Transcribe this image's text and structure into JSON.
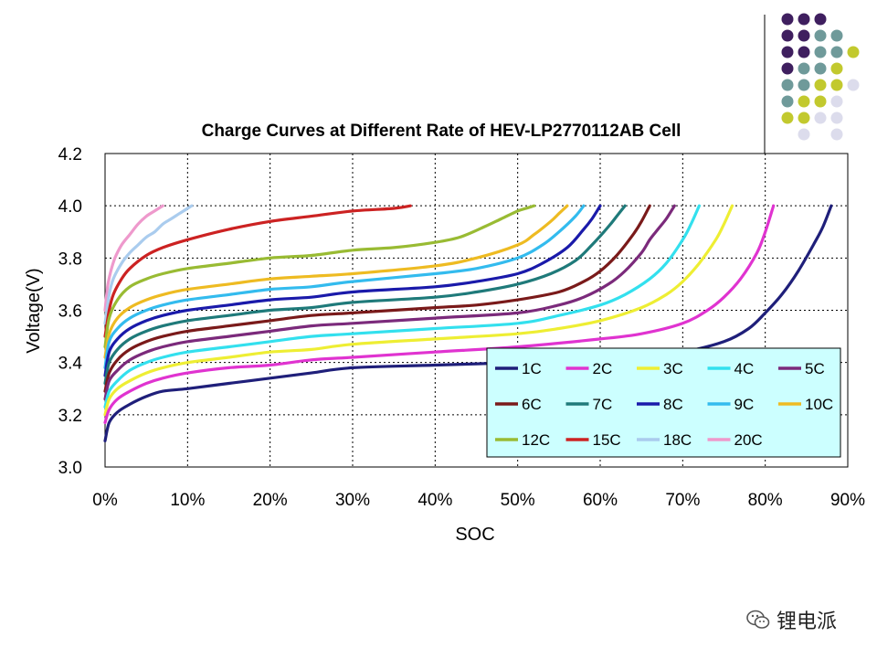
{
  "chart_data": {
    "type": "line",
    "title": "Charge Curves at Different Rate of HEV-LP2770112AB Cell",
    "xlabel": "SOC",
    "ylabel": "Voltage(V)",
    "xlim": [
      0,
      90
    ],
    "ylim": [
      3.0,
      4.2
    ],
    "x_ticks": [
      "0%",
      "10%",
      "20%",
      "30%",
      "40%",
      "50%",
      "60%",
      "70%",
      "80%",
      "90%"
    ],
    "y_ticks": [
      "3.0",
      "3.2",
      "3.4",
      "3.6",
      "3.8",
      "4.0",
      "4.2"
    ],
    "grid": "dotted",
    "legend_position": "bottom-right",
    "legend_bg": "#ccffff",
    "series": [
      {
        "name": "1C",
        "color": "#1f1f7a",
        "x": [
          0,
          0.5,
          1.5,
          3,
          5,
          7,
          10,
          15,
          20,
          25,
          30,
          40,
          50,
          60,
          65,
          70,
          75,
          78,
          80,
          82,
          84,
          86,
          87,
          88
        ],
        "y": [
          3.1,
          3.17,
          3.21,
          3.24,
          3.27,
          3.29,
          3.3,
          3.32,
          3.34,
          3.36,
          3.38,
          3.39,
          3.4,
          3.41,
          3.42,
          3.44,
          3.48,
          3.53,
          3.59,
          3.66,
          3.75,
          3.86,
          3.92,
          4.0
        ]
      },
      {
        "name": "2C",
        "color": "#e033d0",
        "x": [
          0,
          0.5,
          1.5,
          3,
          5,
          7,
          10,
          15,
          20,
          25,
          30,
          40,
          50,
          60,
          65,
          70,
          73,
          75,
          77,
          79,
          80,
          81
        ],
        "y": [
          3.17,
          3.22,
          3.26,
          3.29,
          3.32,
          3.34,
          3.36,
          3.38,
          3.39,
          3.41,
          3.42,
          3.44,
          3.46,
          3.49,
          3.51,
          3.55,
          3.6,
          3.65,
          3.72,
          3.82,
          3.9,
          4.0
        ]
      },
      {
        "name": "3C",
        "color": "#eeee33",
        "x": [
          0,
          0.5,
          1.5,
          3,
          5,
          7,
          10,
          15,
          20,
          25,
          30,
          40,
          50,
          55,
          60,
          65,
          68,
          70,
          72,
          74,
          75,
          76
        ],
        "y": [
          3.2,
          3.26,
          3.3,
          3.33,
          3.36,
          3.38,
          3.4,
          3.42,
          3.44,
          3.45,
          3.47,
          3.49,
          3.51,
          3.53,
          3.56,
          3.61,
          3.66,
          3.71,
          3.78,
          3.87,
          3.93,
          4.0
        ]
      },
      {
        "name": "4C",
        "color": "#33e0ee",
        "x": [
          0,
          0.5,
          1.5,
          3,
          5,
          7,
          10,
          15,
          20,
          25,
          30,
          40,
          50,
          55,
          60,
          63,
          66,
          68,
          70,
          71,
          72
        ],
        "y": [
          3.23,
          3.29,
          3.33,
          3.37,
          3.4,
          3.42,
          3.44,
          3.46,
          3.48,
          3.5,
          3.51,
          3.53,
          3.55,
          3.58,
          3.62,
          3.66,
          3.72,
          3.78,
          3.87,
          3.93,
          4.0
        ]
      },
      {
        "name": "5C",
        "color": "#7b2a7b",
        "x": [
          0,
          0.5,
          1.5,
          3,
          5,
          7,
          10,
          15,
          20,
          25,
          30,
          40,
          50,
          55,
          58,
          61,
          63,
          65,
          66,
          67,
          68,
          69
        ],
        "y": [
          3.26,
          3.33,
          3.37,
          3.41,
          3.44,
          3.46,
          3.48,
          3.5,
          3.52,
          3.54,
          3.55,
          3.57,
          3.59,
          3.62,
          3.65,
          3.7,
          3.75,
          3.82,
          3.87,
          3.91,
          3.95,
          4.0
        ]
      },
      {
        "name": "6C",
        "color": "#7a1a1a",
        "x": [
          0,
          0.5,
          1.5,
          3,
          5,
          7,
          10,
          15,
          20,
          25,
          30,
          40,
          45,
          50,
          55,
          58,
          60,
          62,
          64,
          65,
          66
        ],
        "y": [
          3.29,
          3.36,
          3.41,
          3.45,
          3.48,
          3.5,
          3.52,
          3.54,
          3.56,
          3.58,
          3.59,
          3.61,
          3.62,
          3.64,
          3.67,
          3.71,
          3.75,
          3.81,
          3.89,
          3.94,
          4.0
        ]
      },
      {
        "name": "7C",
        "color": "#1f7a7a",
        "x": [
          0,
          0.5,
          1.5,
          3,
          5,
          7,
          10,
          15,
          20,
          25,
          30,
          40,
          45,
          50,
          54,
          57,
          59,
          61,
          62,
          63
        ],
        "y": [
          3.32,
          3.4,
          3.45,
          3.49,
          3.52,
          3.54,
          3.56,
          3.58,
          3.6,
          3.61,
          3.63,
          3.65,
          3.67,
          3.7,
          3.74,
          3.79,
          3.85,
          3.92,
          3.96,
          4.0
        ]
      },
      {
        "name": "8C",
        "color": "#1a1aaa",
        "x": [
          0,
          0.5,
          1.5,
          3,
          5,
          7,
          10,
          15,
          20,
          25,
          30,
          40,
          45,
          50,
          53,
          56,
          58,
          59,
          60
        ],
        "y": [
          3.35,
          3.44,
          3.49,
          3.53,
          3.56,
          3.58,
          3.6,
          3.62,
          3.64,
          3.65,
          3.67,
          3.69,
          3.71,
          3.74,
          3.78,
          3.84,
          3.91,
          3.95,
          4.0
        ]
      },
      {
        "name": "9C",
        "color": "#33bbee",
        "x": [
          0,
          0.5,
          1.5,
          3,
          5,
          7,
          10,
          15,
          20,
          25,
          30,
          40,
          45,
          50,
          53,
          55,
          57,
          58
        ],
        "y": [
          3.38,
          3.48,
          3.53,
          3.57,
          3.6,
          3.62,
          3.64,
          3.66,
          3.68,
          3.69,
          3.71,
          3.74,
          3.76,
          3.8,
          3.85,
          3.9,
          3.96,
          4.0
        ]
      },
      {
        "name": "10C",
        "color": "#eebb22",
        "x": [
          0,
          0.5,
          1.5,
          3,
          5,
          7,
          10,
          15,
          20,
          25,
          30,
          40,
          45,
          50,
          52,
          54,
          55,
          56
        ],
        "y": [
          3.42,
          3.51,
          3.57,
          3.61,
          3.64,
          3.66,
          3.68,
          3.7,
          3.72,
          3.73,
          3.74,
          3.77,
          3.8,
          3.85,
          3.89,
          3.94,
          3.97,
          4.0
        ]
      },
      {
        "name": "12C",
        "color": "#99bb33",
        "x": [
          0,
          0.5,
          1.5,
          3,
          5,
          7,
          10,
          15,
          20,
          25,
          30,
          35,
          40,
          43,
          46,
          48,
          50,
          51,
          52
        ],
        "y": [
          3.46,
          3.57,
          3.64,
          3.69,
          3.72,
          3.74,
          3.76,
          3.78,
          3.8,
          3.81,
          3.83,
          3.84,
          3.86,
          3.88,
          3.92,
          3.95,
          3.98,
          3.99,
          4.0
        ]
      },
      {
        "name": "15C",
        "color": "#cc2222",
        "x": [
          0,
          0.5,
          1,
          2,
          3,
          5,
          7,
          10,
          15,
          20,
          25,
          30,
          35,
          37
        ],
        "y": [
          3.5,
          3.6,
          3.66,
          3.72,
          3.76,
          3.81,
          3.84,
          3.87,
          3.91,
          3.94,
          3.96,
          3.98,
          3.99,
          4.0
        ]
      },
      {
        "name": "18C",
        "color": "#aaccee",
        "x": [
          0,
          0.5,
          1,
          2,
          3,
          4,
          5,
          6,
          7,
          8,
          9,
          10,
          10.5
        ],
        "y": [
          3.55,
          3.66,
          3.72,
          3.78,
          3.82,
          3.85,
          3.88,
          3.9,
          3.93,
          3.95,
          3.97,
          3.99,
          4.0
        ]
      },
      {
        "name": "20C",
        "color": "#ee99cc",
        "x": [
          0,
          0.3,
          0.7,
          1.2,
          2,
          3,
          4,
          5,
          6,
          7
        ],
        "y": [
          3.6,
          3.69,
          3.75,
          3.8,
          3.85,
          3.89,
          3.93,
          3.96,
          3.98,
          4.0
        ]
      }
    ]
  },
  "decoration": {
    "dot_colors": [
      "#3f1f5f",
      "#6f9a9a",
      "#c2c92e",
      "#dcdcec"
    ]
  },
  "watermark": {
    "text": "锂电派",
    "icon": "wechat-icon"
  }
}
